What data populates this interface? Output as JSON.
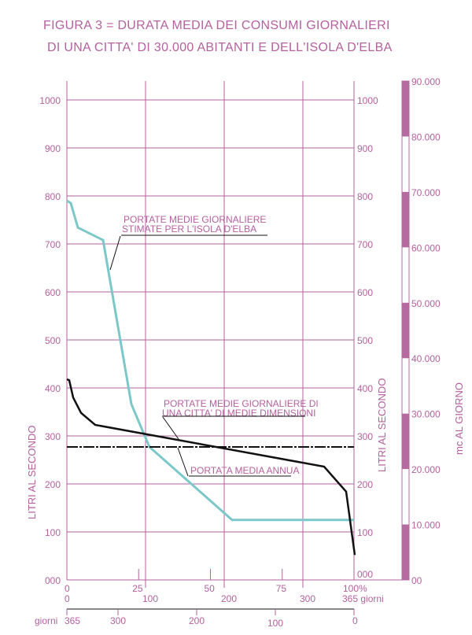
{
  "chart_data": {
    "type": "line",
    "title_lines": [
      "FIGURA  3  =  DURATA MEDIA DEI CONSUMI GIORNALIERI",
      "DI UNA CITTA' DI 30.000 ABITANTI E DELL'ISOLA D'ELBA"
    ],
    "ylabel_left": "LITRI AL SECONDO",
    "ylabel_right": "LITRI AL SECONDO",
    "ylabel_far_right": "mc AL GIORNO",
    "ylim": [
      0,
      1000
    ],
    "y_ticks": [
      "000",
      "100",
      "200",
      "300",
      "400",
      "500",
      "600",
      "700",
      "800",
      "900",
      "1000"
    ],
    "y_ticks_right": [
      "000",
      "100",
      "200",
      "300",
      "400",
      "500",
      "600",
      "700",
      "800",
      "900",
      "1000"
    ],
    "mc_ticks": [
      "00",
      "10.000",
      "20.000",
      "30.000",
      "40.000",
      "50.000",
      "60.000",
      "70.000",
      "80.000",
      "90.000"
    ],
    "mc_ylim": [
      0,
      90000
    ],
    "xlim": [
      0,
      365
    ],
    "x_percent_ticks": [
      {
        "v": 0,
        "label": "0"
      },
      {
        "v": 25,
        "label": "25"
      },
      {
        "v": 50,
        "label": "50"
      },
      {
        "v": 75,
        "label": "75"
      },
      {
        "v": 100,
        "label": "100%"
      }
    ],
    "x_days_ticks": [
      {
        "v": 0,
        "label": "0"
      },
      {
        "v": 100,
        "label": "100"
      },
      {
        "v": 200,
        "label": "200"
      },
      {
        "v": 300,
        "label": "300"
      },
      {
        "v": 365,
        "label": "365 giorni"
      }
    ],
    "x_days_reverse_label": "giorni",
    "x_days_reverse_ticks": [
      {
        "v": 365,
        "label": "365"
      },
      {
        "v": 300,
        "label": "300"
      },
      {
        "v": 200,
        "label": "200"
      },
      {
        "v": 100,
        "label": "100"
      },
      {
        "v": 0,
        "label": "0"
      }
    ],
    "grid": true,
    "colors": {
      "axis": "#b5609f",
      "elba": "#7cc8c8",
      "city": "#111111",
      "mc_bar": "#b56aa0"
    },
    "series": [
      {
        "key": "elba",
        "x": [
          0,
          5,
          14,
          46,
          82,
          105,
          210,
          365
        ],
        "y": [
          790,
          785,
          734,
          708,
          366,
          277,
          125,
          125
        ]
      },
      {
        "key": "city",
        "x": [
          0,
          3,
          8,
          18,
          36,
          327,
          355,
          366
        ],
        "y": [
          418,
          416,
          380,
          348,
          323,
          236,
          184,
          52
        ]
      },
      {
        "key": "mean",
        "x": [
          0,
          365
        ],
        "y": [
          277,
          277
        ]
      }
    ],
    "annotations": [
      {
        "key": "elba",
        "lines": [
          "PORTATE MEDIE GIORNALIERE",
          "STIMATE PER L'ISOLA D'ELBA"
        ]
      },
      {
        "key": "city",
        "lines": [
          "PORTATE MEDIE GIORNALIERE DI",
          "UNA CITTA' DI MEDIE DIMENSIONI"
        ]
      },
      {
        "key": "mean",
        "lines": [
          "PORTATA MEDIA ANNUA"
        ]
      }
    ]
  }
}
